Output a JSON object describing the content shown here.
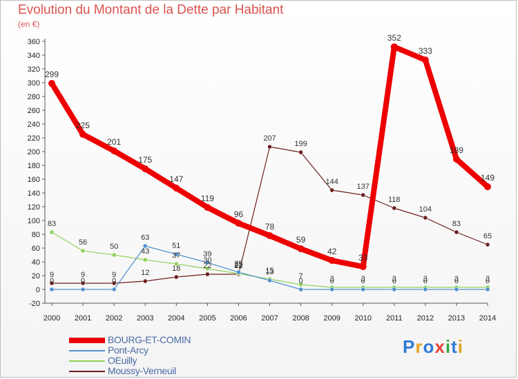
{
  "header": {
    "title": "Evolution du Montant de la Dette par Habitant",
    "unit": "(en €)"
  },
  "logo": {
    "text": "Proxiti",
    "colors": [
      "#2e7bd6",
      "#e2a321",
      "#2e7bd6",
      "#e8433a",
      "#3aa64a",
      "#2e7bd6",
      "#e2a321"
    ]
  },
  "chart_data": {
    "type": "line",
    "categories": [
      "2000",
      "2001",
      "2002",
      "2003",
      "2004",
      "2005",
      "2006",
      "2007",
      "2008",
      "2009",
      "2010",
      "2011",
      "2012",
      "2013",
      "2014"
    ],
    "ylim": [
      -20,
      360
    ],
    "yticks": [
      -20,
      0,
      20,
      40,
      60,
      80,
      100,
      120,
      140,
      160,
      180,
      200,
      220,
      240,
      260,
      280,
      300,
      320,
      340,
      360
    ],
    "grid": false,
    "legend_position": "bottom-left",
    "series": [
      {
        "name": "BOURG-ET-COMIN",
        "color": "#ee0000",
        "values": [
          299,
          225,
          201,
          175,
          147,
          119,
          96,
          78,
          59,
          42,
          33,
          352,
          333,
          189,
          149
        ],
        "labels": [
          "299",
          "225",
          "201",
          "175",
          "147",
          "119",
          "96",
          "78",
          "59",
          "42",
          "33",
          "352",
          "333",
          "189",
          "149"
        ]
      },
      {
        "name": "Pont-Arcy",
        "color": "#4f8fce",
        "values": [
          0,
          0,
          0,
          63,
          51,
          39,
          25,
          13,
          0,
          0,
          0,
          0,
          0,
          0,
          0
        ],
        "labels": [
          "0",
          "0",
          "0",
          "63",
          "51",
          "39",
          "25",
          "13",
          "0",
          "0",
          "0",
          "0",
          "0",
          "0",
          "0"
        ]
      },
      {
        "name": "OEuilly",
        "color": "#8fd15a",
        "values": [
          83,
          56,
          50,
          43,
          37,
          30,
          23,
          15,
          7,
          3,
          3,
          3,
          3,
          3,
          3
        ],
        "labels": [
          "83",
          "56",
          "50",
          "43",
          "37",
          "30",
          "23",
          "15",
          "7",
          "3",
          "3",
          "3",
          "3",
          "3",
          "3"
        ]
      },
      {
        "name": "Moussy-Verneuil",
        "color": "#6b1d1d",
        "values": [
          9,
          9,
          9,
          12,
          18,
          22,
          22,
          207,
          199,
          144,
          137,
          118,
          104,
          83,
          65
        ],
        "labels": [
          "9",
          "9",
          "9",
          "12",
          "18",
          "22",
          "22",
          "207",
          "199",
          "144",
          "137",
          "118",
          "104",
          "83",
          "65"
        ]
      }
    ]
  }
}
